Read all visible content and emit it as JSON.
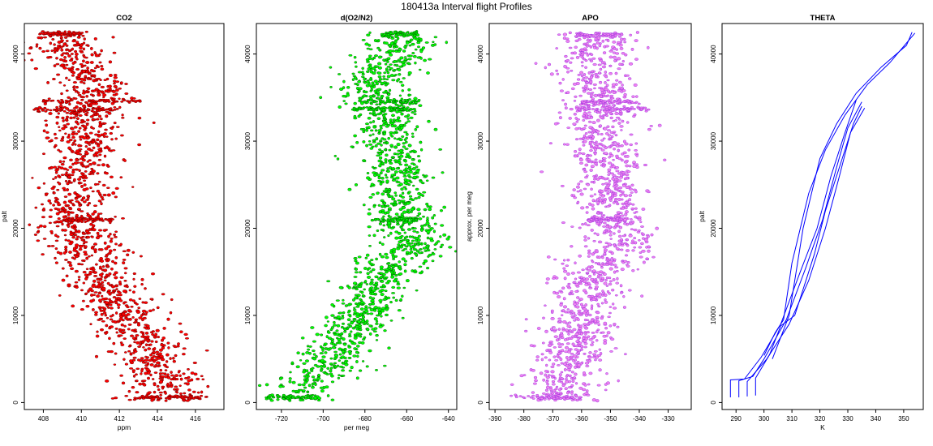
{
  "figure": {
    "title": "180413a   Interval flight Profiles"
  },
  "chart_data": [
    {
      "type": "scatter",
      "title": "CO2",
      "xlabel": "ppm",
      "ylabel": "palt",
      "xlim": [
        407,
        417.5
      ],
      "ylim": [
        -800,
        43500
      ],
      "xticks": [
        408,
        410,
        412,
        414,
        416
      ],
      "yticks": [
        0,
        10000,
        20000,
        30000,
        40000
      ],
      "color": "#ff0000",
      "edge_color": "#600000",
      "series": [
        {
          "profile": [
            [
              0,
              414.6
            ],
            [
              2000,
              414.5
            ],
            [
              4000,
              414.0
            ],
            [
              6000,
              413.6
            ],
            [
              8000,
              413.0
            ],
            [
              10000,
              412.3
            ],
            [
              12000,
              411.7
            ],
            [
              14000,
              411.3
            ],
            [
              16000,
              410.7
            ],
            [
              18000,
              410.2
            ],
            [
              20000,
              409.8
            ],
            [
              22000,
              409.6
            ],
            [
              24000,
              409.8
            ],
            [
              26000,
              410.0
            ],
            [
              28000,
              410.2
            ],
            [
              30000,
              410.3
            ],
            [
              32000,
              410.2
            ],
            [
              34000,
              410.5
            ],
            [
              36000,
              410.8
            ],
            [
              38000,
              410.0
            ],
            [
              40000,
              409.4
            ],
            [
              42500,
              409.0
            ]
          ],
          "spread": 1.0,
          "bands": [
            [
              600,
              412.8,
              416.6
            ],
            [
              21000,
              409.0,
              411.7
            ],
            [
              33600,
              407.5,
              412.0
            ],
            [
              34600,
              408.0,
              413.2
            ],
            [
              42300,
              407.8,
              410.2
            ]
          ]
        }
      ]
    },
    {
      "type": "scatter",
      "title": "d(O2/N2)",
      "xlabel": "per meg",
      "ylabel": "",
      "xlim": [
        -732,
        -636
      ],
      "ylim": [
        -800,
        43500
      ],
      "xticks": [
        -720,
        -700,
        -680,
        -660,
        -640
      ],
      "yticks": [
        0,
        10000,
        20000,
        30000,
        40000
      ],
      "color": "#00ff00",
      "edge_color": "#005000",
      "series": [
        {
          "profile": [
            [
              0,
              -712
            ],
            [
              2000,
              -708
            ],
            [
              4000,
              -700
            ],
            [
              6000,
              -693
            ],
            [
              8000,
              -688
            ],
            [
              10000,
              -683
            ],
            [
              12000,
              -678
            ],
            [
              14000,
              -674
            ],
            [
              16000,
              -664
            ],
            [
              18000,
              -656
            ],
            [
              20000,
              -658
            ],
            [
              22000,
              -662
            ],
            [
              24000,
              -665
            ],
            [
              26000,
              -664
            ],
            [
              28000,
              -667
            ],
            [
              30000,
              -668
            ],
            [
              32000,
              -668
            ],
            [
              34000,
              -670
            ],
            [
              36000,
              -676
            ],
            [
              38000,
              -672
            ],
            [
              40000,
              -664
            ],
            [
              42500,
              -664
            ]
          ],
          "spread": 8.5,
          "bands": [
            [
              600,
              -728,
              -705
            ],
            [
              21000,
              -675,
              -655
            ],
            [
              33700,
              -686,
              -658
            ],
            [
              34500,
              -680,
              -654
            ],
            [
              42200,
              -672,
              -656
            ]
          ]
        }
      ]
    },
    {
      "type": "scatter",
      "title": "APO",
      "xlabel": "",
      "ylabel": "approx. per meg",
      "xlim": [
        -392,
        -322
      ],
      "ylim": [
        -800,
        43500
      ],
      "xticks": [
        -390,
        -380,
        -370,
        -360,
        -350,
        -340,
        -330
      ],
      "yticks": [
        0,
        10000,
        20000,
        30000,
        40000
      ],
      "color": "#ee82ee",
      "edge_color": "#9a30e0",
      "series": [
        {
          "profile": [
            [
              0,
              -367
            ],
            [
              2000,
              -366
            ],
            [
              4000,
              -365
            ],
            [
              6000,
              -364
            ],
            [
              8000,
              -362
            ],
            [
              10000,
              -360
            ],
            [
              12000,
              -358
            ],
            [
              14000,
              -356
            ],
            [
              16000,
              -352
            ],
            [
              18000,
              -346
            ],
            [
              20000,
              -348
            ],
            [
              22000,
              -350
            ],
            [
              24000,
              -350
            ],
            [
              26000,
              -350
            ],
            [
              28000,
              -352
            ],
            [
              30000,
              -353
            ],
            [
              32000,
              -354
            ],
            [
              34000,
              -354
            ],
            [
              36000,
              -354
            ],
            [
              38000,
              -356
            ],
            [
              40000,
              -356
            ],
            [
              42500,
              -354
            ]
          ],
          "spread": 6.5,
          "bands": [
            [
              600,
              -385,
              -360
            ],
            [
              21000,
              -358,
              -346
            ],
            [
              33700,
              -362,
              -336
            ],
            [
              34500,
              -360,
              -340
            ],
            [
              42200,
              -362,
              -346
            ]
          ]
        }
      ]
    },
    {
      "type": "line",
      "title": "THETA",
      "xlabel": "K",
      "ylabel": "palt",
      "xlim": [
        285,
        357
      ],
      "ylim": [
        -800,
        43500
      ],
      "xticks": [
        290,
        300,
        310,
        320,
        330,
        340,
        350
      ],
      "yticks": [
        0,
        10000,
        20000,
        30000,
        40000
      ],
      "color": "#0000ff",
      "series": [
        {
          "points": [
            [
              288,
              600
            ],
            [
              288,
              2600
            ],
            [
              293,
              2700
            ],
            [
              299,
              5200
            ],
            [
              306,
              9000
            ],
            [
              313,
              15000
            ],
            [
              319,
              20000
            ],
            [
              324,
              26000
            ],
            [
              329,
              31000
            ],
            [
              333,
              34700
            ]
          ]
        },
        {
          "points": [
            [
              291,
              600
            ],
            [
              291,
              2500
            ],
            [
              296,
              3000
            ],
            [
              300,
              5000
            ],
            [
              308,
              9500
            ],
            [
              315,
              15500
            ],
            [
              321,
              21000
            ],
            [
              326,
              27000
            ],
            [
              330,
              31500
            ],
            [
              335,
              34500
            ]
          ]
        },
        {
          "points": [
            [
              294,
              700
            ],
            [
              294,
              2400
            ],
            [
              301,
              5000
            ],
            [
              309,
              9000
            ],
            [
              316,
              14000
            ],
            [
              322,
              20000
            ],
            [
              327,
              26000
            ],
            [
              331,
              31000
            ],
            [
              336,
              33800
            ]
          ]
        },
        {
          "points": [
            [
              297,
              800
            ],
            [
              297,
              2800
            ],
            [
              302,
              5500
            ],
            [
              306,
              8800
            ],
            [
              311,
              10000
            ],
            [
              318,
              17000
            ],
            [
              322,
              22000
            ],
            [
              328,
              28000
            ],
            [
              332,
              32000
            ],
            [
              335,
              34000
            ]
          ]
        },
        {
          "points": [
            [
              300,
              5400
            ],
            [
              304,
              8000
            ],
            [
              307,
              9500
            ],
            [
              310,
              16000
            ],
            [
              316,
              24000
            ],
            [
              322,
              29000
            ],
            [
              329,
              33000
            ],
            [
              337,
              36500
            ],
            [
              345,
              39000
            ],
            [
              354,
              42400
            ]
          ]
        },
        {
          "points": [
            [
              303,
              5000
            ],
            [
              309,
              10000
            ],
            [
              314,
              20000
            ],
            [
              320,
              28000
            ],
            [
              326,
              32000
            ],
            [
              333,
              35500
            ],
            [
              342,
              38500
            ],
            [
              351,
              41000
            ],
            [
              353,
              42500
            ]
          ]
        }
      ]
    }
  ]
}
